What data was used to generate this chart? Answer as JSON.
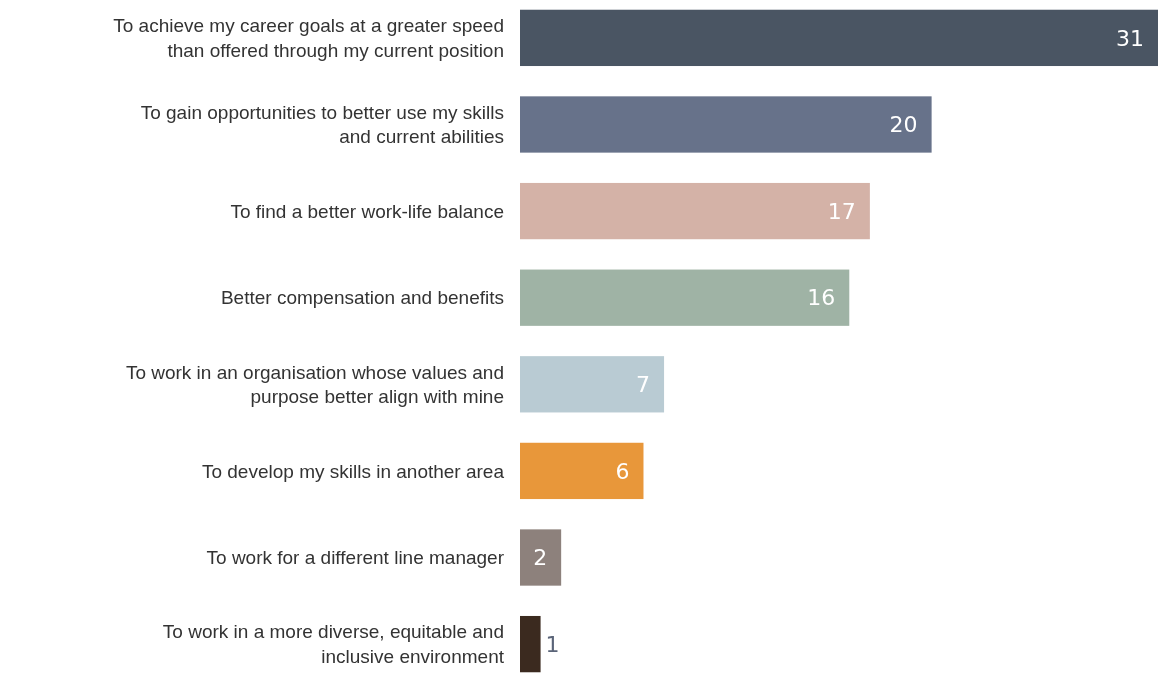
{
  "chart_data": {
    "type": "bar",
    "orientation": "horizontal",
    "data_labels": true,
    "categories": [
      "To achieve my career goals at a greater speed than offered through my current position",
      "To gain opportunities to better use my skills and current abilities",
      "To find a better work-life balance",
      "Better compensation and benefits",
      "To work in an organisation whose values and purpose better align with mine",
      "To develop my skills in another area",
      "To work for a different line manager",
      "To work in a more diverse, equitable and inclusive environment"
    ],
    "values": [
      31,
      20,
      17,
      16,
      7,
      6,
      2,
      1
    ],
    "colors": [
      "#4a5563",
      "#67728a",
      "#d4b2a7",
      "#9fb3a5",
      "#b9cbd3",
      "#e8973a",
      "#8d817c",
      "#3b2a1f"
    ]
  }
}
